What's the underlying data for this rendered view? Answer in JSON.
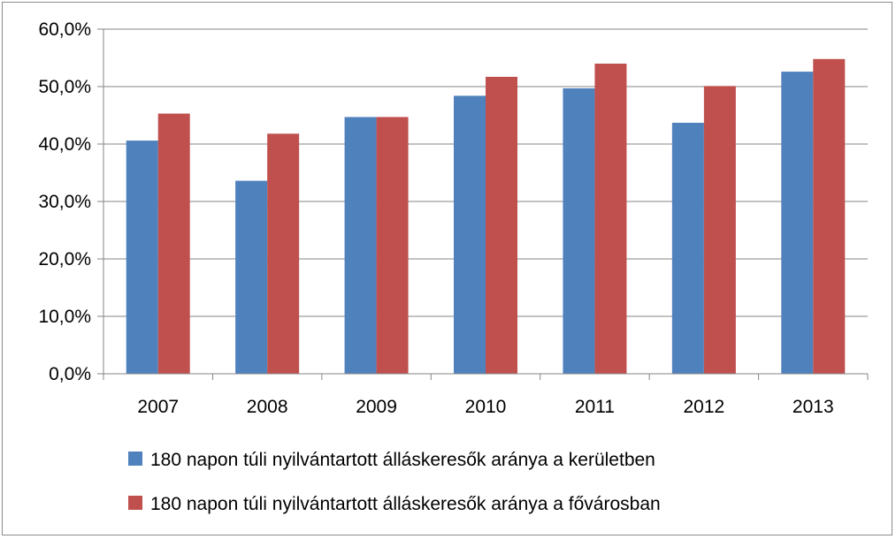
{
  "chart_data": {
    "type": "bar",
    "title": "",
    "xlabel": "",
    "ylabel": "",
    "categories": [
      "2007",
      "2008",
      "2009",
      "2010",
      "2011",
      "2012",
      "2013"
    ],
    "series": [
      {
        "name": "180 napon túli nyilvántartott álláskeresők aránya a kerületben",
        "color": "#4f81bd",
        "values": [
          40.6,
          33.6,
          44.7,
          48.4,
          49.7,
          43.7,
          52.6
        ]
      },
      {
        "name": "180 napon túli nyilvántartott álláskeresők aránya a fővárosban",
        "color": "#c0504d",
        "values": [
          45.3,
          41.8,
          44.7,
          51.7,
          54.0,
          50.1,
          54.8
        ]
      }
    ],
    "ylim": [
      0,
      60
    ],
    "yticks": [
      "0,0%",
      "10,0%",
      "20,0%",
      "30,0%",
      "40,0%",
      "50,0%",
      "60,0%"
    ],
    "grid": true,
    "legend_position": "bottom"
  }
}
